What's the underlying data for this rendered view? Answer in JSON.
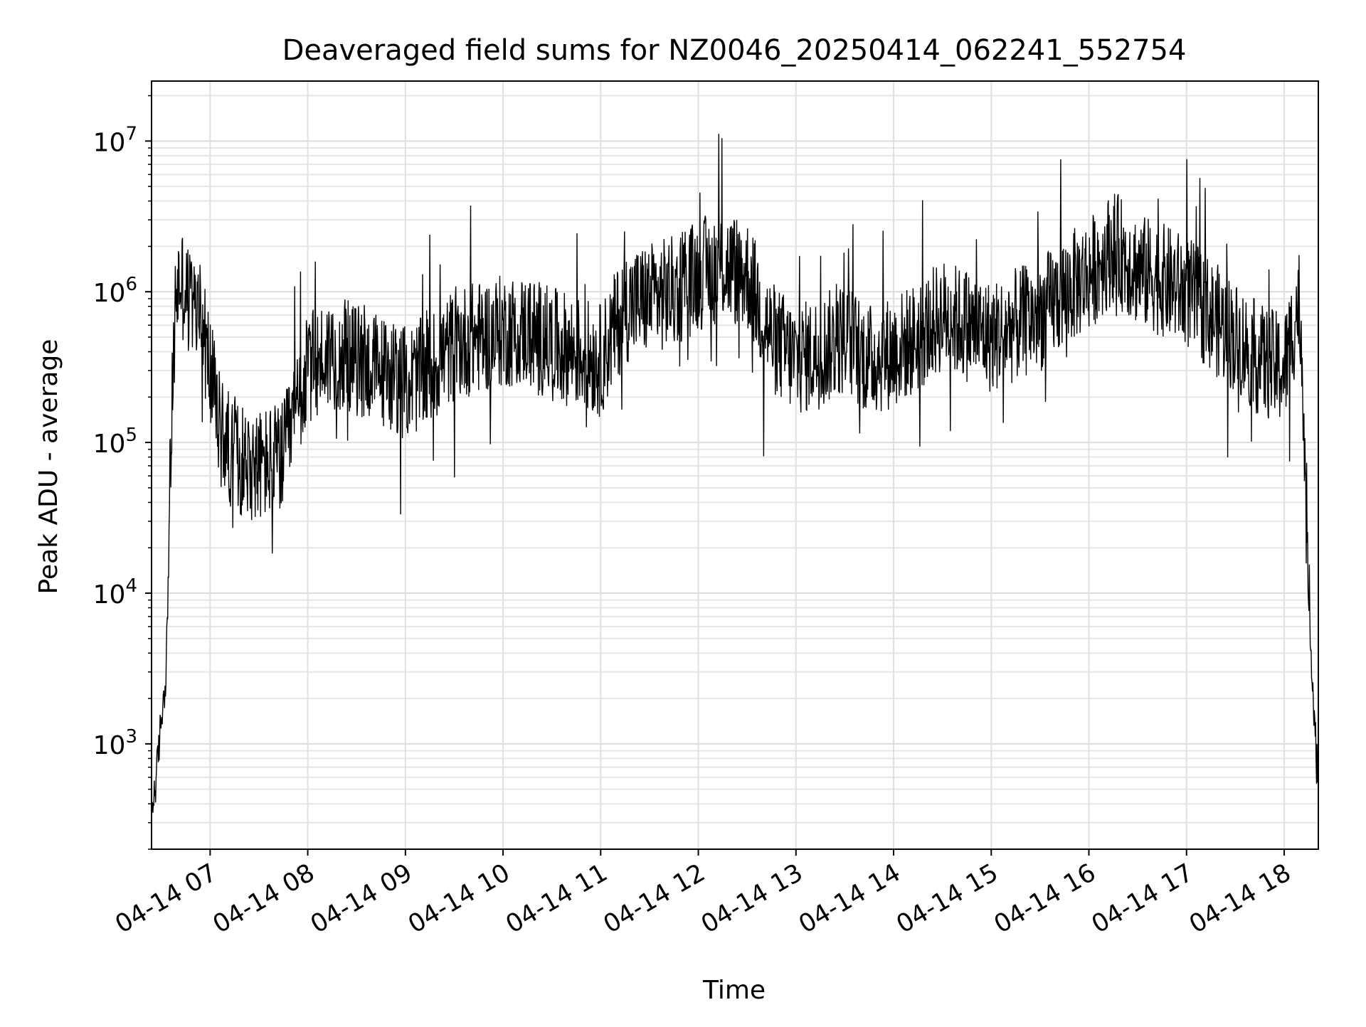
{
  "chart_data": {
    "type": "line",
    "title": "Deaveraged field sums for NZ0046_20250414_062241_552754",
    "xlabel": "Time",
    "ylabel": "Peak ADU - average",
    "yscale": "log",
    "ylim": [
      200,
      25000000
    ],
    "xlim": [
      "2025-04-14 06:24",
      "2025-04-14 18:21"
    ],
    "x_ticks": [
      "04-14 07",
      "04-14 08",
      "04-14 09",
      "04-14 10",
      "04-14 11",
      "04-14 12",
      "04-14 13",
      "04-14 14",
      "04-14 15",
      "04-14 16",
      "04-14 17",
      "04-14 18"
    ],
    "y_ticks": [
      {
        "value": 1000,
        "base": "10",
        "exp": "3"
      },
      {
        "value": 10000,
        "base": "10",
        "exp": "4"
      },
      {
        "value": 100000,
        "base": "10",
        "exp": "5"
      },
      {
        "value": 1000000,
        "base": "10",
        "exp": "6"
      },
      {
        "value": 10000000,
        "base": "10",
        "exp": "7"
      }
    ],
    "grid": true,
    "line_color": "#000000",
    "series": [
      {
        "x": [
          "2025-04-14 06:24",
          "2025-04-14 06:27",
          "2025-04-14 06:30",
          "2025-04-14 06:33",
          "2025-04-14 06:36",
          "2025-04-14 06:39",
          "2025-04-14 06:42",
          "2025-04-14 06:48",
          "2025-04-14 06:54",
          "2025-04-14 07:00",
          "2025-04-14 07:06",
          "2025-04-14 07:15",
          "2025-04-14 07:30",
          "2025-04-14 07:45",
          "2025-04-14 08:00",
          "2025-04-14 08:15",
          "2025-04-14 08:30",
          "2025-04-14 08:45",
          "2025-04-14 09:00",
          "2025-04-14 09:15",
          "2025-04-14 09:30",
          "2025-04-14 09:45",
          "2025-04-14 10:00",
          "2025-04-14 10:15",
          "2025-04-14 10:30",
          "2025-04-14 10:45",
          "2025-04-14 11:00",
          "2025-04-14 11:15",
          "2025-04-14 11:30",
          "2025-04-14 11:45",
          "2025-04-14 12:00",
          "2025-04-14 12:15",
          "2025-04-14 12:30",
          "2025-04-14 12:45",
          "2025-04-14 13:00",
          "2025-04-14 13:15",
          "2025-04-14 13:30",
          "2025-04-14 13:45",
          "2025-04-14 14:00",
          "2025-04-14 14:15",
          "2025-04-14 14:30",
          "2025-04-14 14:45",
          "2025-04-14 15:00",
          "2025-04-14 15:15",
          "2025-04-14 15:30",
          "2025-04-14 15:45",
          "2025-04-14 16:00",
          "2025-04-14 16:15",
          "2025-04-14 16:30",
          "2025-04-14 16:45",
          "2025-04-14 17:00",
          "2025-04-14 17:15",
          "2025-04-14 17:30",
          "2025-04-14 17:45",
          "2025-04-14 18:00",
          "2025-04-14 18:06",
          "2025-04-14 18:09",
          "2025-04-14 18:12",
          "2025-04-14 18:15",
          "2025-04-14 18:18",
          "2025-04-14 18:21"
        ],
        "values": [
          350,
          600,
          1500,
          3000,
          100000,
          1000000,
          1200000,
          800000,
          700000,
          300000,
          120000,
          80000,
          70000,
          80000,
          300000,
          400000,
          350000,
          300000,
          250000,
          300000,
          450000,
          500000,
          550000,
          550000,
          450000,
          400000,
          350000,
          800000,
          900000,
          1000000,
          1300000,
          1500000,
          1300000,
          500000,
          350000,
          400000,
          500000,
          350000,
          400000,
          500000,
          700000,
          600000,
          500000,
          600000,
          700000,
          1000000,
          1300000,
          2000000,
          1400000,
          1200000,
          1000000,
          700000,
          500000,
          350000,
          300000,
          600000,
          900000,
          200000,
          10000,
          2000,
          600
        ]
      }
    ]
  }
}
